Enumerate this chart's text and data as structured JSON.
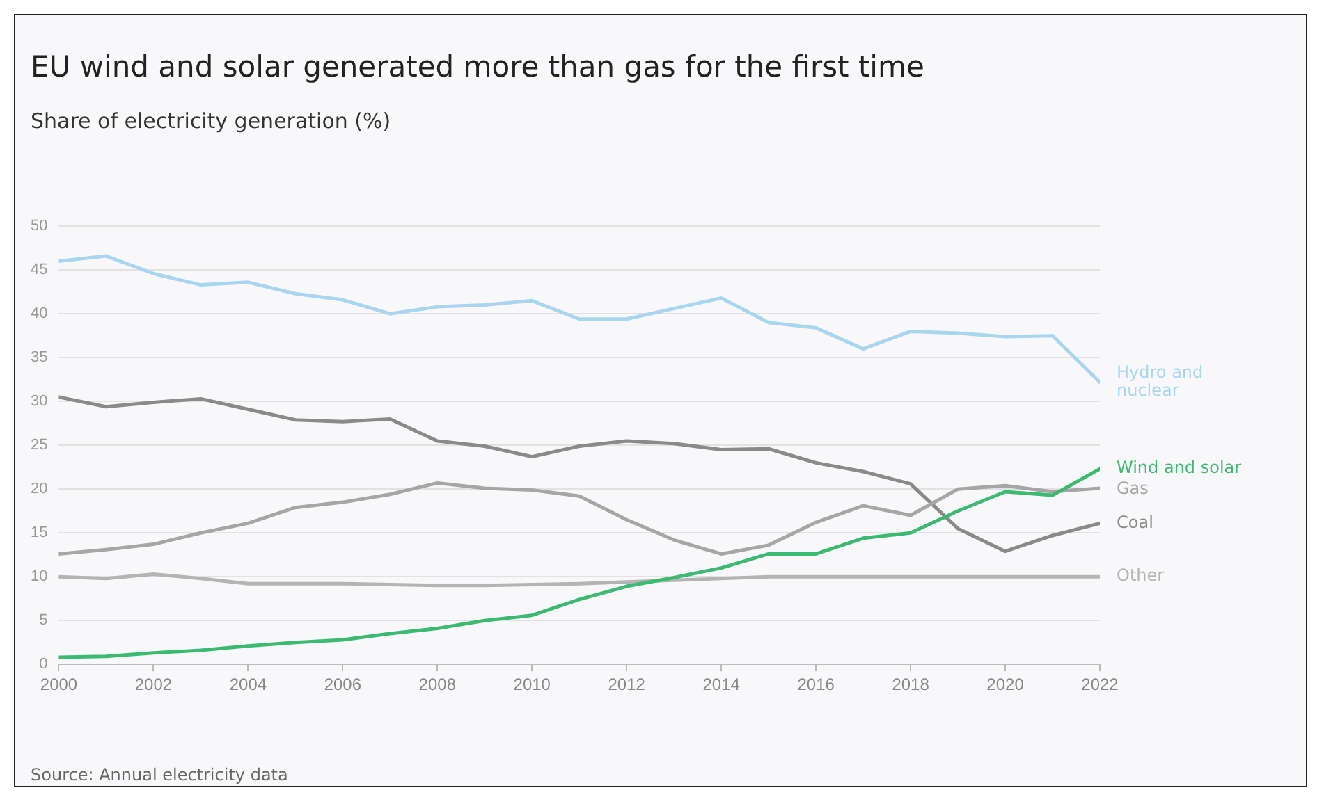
{
  "chart_data": {
    "type": "line",
    "title": "EU wind and solar generated more than gas for the first time",
    "subtitle": "Share of electricity generation (%)",
    "x": [
      2000,
      2001,
      2002,
      2003,
      2004,
      2005,
      2006,
      2007,
      2008,
      2009,
      2010,
      2011,
      2012,
      2013,
      2014,
      2015,
      2016,
      2017,
      2018,
      2019,
      2020,
      2021,
      2022
    ],
    "xlim": [
      2000,
      2022
    ],
    "xticks": [
      2000,
      2002,
      2004,
      2006,
      2008,
      2010,
      2012,
      2014,
      2016,
      2018,
      2020,
      2022
    ],
    "ylim": [
      0,
      50
    ],
    "yticks": [
      0,
      5,
      10,
      15,
      20,
      25,
      30,
      35,
      40,
      45,
      50
    ],
    "series": [
      {
        "name": "Hydro and nuclear",
        "color": "#a8d6ee",
        "values": [
          46.0,
          46.6,
          44.6,
          43.3,
          43.6,
          42.3,
          41.6,
          40.0,
          40.8,
          41.0,
          41.5,
          39.4,
          39.4,
          40.6,
          41.8,
          39.0,
          38.4,
          36.0,
          38.0,
          37.8,
          37.4,
          37.5,
          32.2
        ]
      },
      {
        "name": "Wind and solar",
        "color": "#3dba72",
        "values": [
          0.8,
          0.9,
          1.3,
          1.6,
          2.1,
          2.5,
          2.8,
          3.5,
          4.1,
          5.0,
          5.6,
          7.4,
          8.9,
          9.9,
          11.0,
          12.6,
          12.6,
          14.4,
          15.0,
          17.5,
          19.7,
          19.3,
          22.3
        ]
      },
      {
        "name": "Gas",
        "color": "#a6a6a6",
        "values": [
          12.6,
          13.1,
          13.7,
          15.0,
          16.1,
          17.9,
          18.5,
          19.4,
          20.7,
          20.1,
          19.9,
          19.2,
          16.5,
          14.2,
          12.6,
          13.6,
          16.2,
          18.1,
          17.0,
          20.0,
          20.4,
          19.7,
          20.1
        ]
      },
      {
        "name": "Coal",
        "color": "#8a8a8a",
        "values": [
          30.5,
          29.4,
          29.9,
          30.3,
          29.1,
          27.9,
          27.7,
          28.0,
          25.5,
          24.9,
          23.7,
          24.9,
          25.5,
          25.2,
          24.5,
          24.6,
          23.0,
          22.0,
          20.6,
          15.5,
          12.9,
          14.7,
          16.1
        ]
      },
      {
        "name": "Other",
        "color": "#b4b4b4",
        "values": [
          10.0,
          9.8,
          10.3,
          9.8,
          9.2,
          9.2,
          9.2,
          9.1,
          9.0,
          9.0,
          9.1,
          9.2,
          9.4,
          9.6,
          9.8,
          10.0,
          10.0,
          10.0,
          10.0,
          10.0,
          10.0,
          10.0,
          10.0
        ]
      }
    ],
    "grid": "y",
    "legend": false,
    "marker": "none",
    "line_style": "solid",
    "annotations": [
      "Source: Annual electricity data"
    ]
  }
}
